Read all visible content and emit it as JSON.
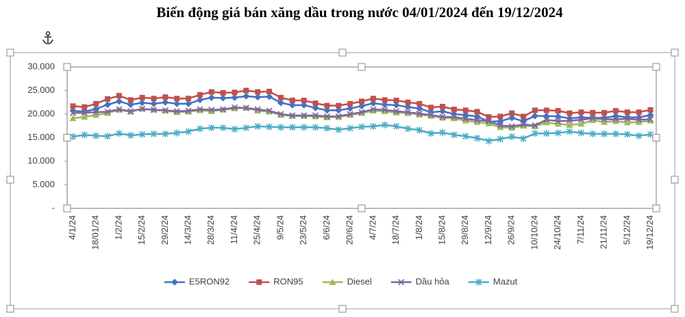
{
  "chart_data": {
    "type": "line",
    "title": "Biến động giá bán xăng dầu trong nước 04/01/2024 đến 19/12/2024",
    "categories": [
      "4/1/24",
      null,
      "18/01/24",
      null,
      "1/2/24",
      null,
      "15/2/24",
      null,
      "29/2/24",
      null,
      "14/3/24",
      null,
      "28/3/24",
      null,
      "11/4/24",
      null,
      "25/4/24",
      null,
      "9/5/24",
      null,
      "23/5/24",
      null,
      "6/6/24",
      null,
      "20/6/24",
      null,
      "4/7/24",
      null,
      "18/7/24",
      null,
      "1/8/24",
      null,
      "15/8/24",
      null,
      "29/8/24",
      null,
      "12/9/24",
      null,
      "26/9/24",
      null,
      "10/10/24",
      null,
      "24/10/24",
      null,
      "7/11/24",
      null,
      "21/11/24",
      null,
      "5/12/24",
      null,
      "19/12/24"
    ],
    "series": [
      {
        "name": "E5RON92",
        "color": "#4472c4",
        "marker": "diamond",
        "values": [
          20700,
          20500,
          21100,
          22000,
          22700,
          22000,
          22400,
          22200,
          22500,
          22200,
          22200,
          23000,
          23500,
          23400,
          23500,
          23800,
          23600,
          23700,
          22400,
          21900,
          21900,
          21300,
          20800,
          20800,
          21200,
          21700,
          22300,
          22000,
          21900,
          21500,
          21200,
          20400,
          20600,
          20000,
          19800,
          19500,
          18400,
          18500,
          19200,
          18500,
          19600,
          19600,
          19500,
          19100,
          19300,
          19200,
          19200,
          19600,
          19300,
          19300,
          19800
        ]
      },
      {
        "name": "RON95",
        "color": "#c0504d",
        "marker": "square",
        "values": [
          21700,
          21500,
          22200,
          23200,
          23900,
          23000,
          23500,
          23300,
          23600,
          23300,
          23300,
          24100,
          24700,
          24500,
          24600,
          25000,
          24700,
          24800,
          23500,
          22900,
          22900,
          22300,
          21800,
          21800,
          22200,
          22700,
          23300,
          23000,
          22900,
          22500,
          22200,
          21400,
          21600,
          21000,
          20800,
          20500,
          19400,
          19500,
          20200,
          19500,
          20800,
          20800,
          20700,
          20200,
          20400,
          20300,
          20300,
          20700,
          20400,
          20400,
          20900
        ]
      },
      {
        "name": "Diesel",
        "color": "#9bbb59",
        "marker": "triangle",
        "values": [
          19100,
          19400,
          19800,
          20200,
          20900,
          20500,
          21100,
          20900,
          20700,
          20400,
          20500,
          20800,
          20600,
          20900,
          21200,
          21300,
          20700,
          20500,
          19800,
          19600,
          19600,
          19500,
          19300,
          19400,
          19800,
          20200,
          20700,
          20600,
          20300,
          20200,
          19900,
          19600,
          19200,
          19100,
          18600,
          18300,
          18000,
          17200,
          17100,
          17500,
          17400,
          18200,
          17900,
          17700,
          17900,
          18700,
          18300,
          18500,
          18200,
          18300,
          18600
        ]
      },
      {
        "name": "Dầu hỏa",
        "color": "#8064a2",
        "marker": "x",
        "values": [
          20200,
          20300,
          20400,
          20500,
          21000,
          20600,
          21100,
          20900,
          20800,
          20600,
          20700,
          21000,
          20900,
          21000,
          21400,
          21300,
          21000,
          20700,
          20000,
          19700,
          19700,
          19700,
          19500,
          19500,
          20000,
          20400,
          21000,
          20900,
          20600,
          20400,
          20100,
          19800,
          19400,
          19400,
          19000,
          18700,
          18500,
          17600,
          17400,
          17800,
          17600,
          18800,
          18500,
          18600,
          18800,
          19100,
          18900,
          18900,
          19000,
          18800,
          18900
        ]
      },
      {
        "name": "Mazut",
        "color": "#4bacc6",
        "marker": "star",
        "values": [
          15200,
          15600,
          15400,
          15300,
          15900,
          15500,
          15700,
          15800,
          15800,
          16000,
          16300,
          16900,
          17100,
          17100,
          16800,
          17100,
          17400,
          17300,
          17200,
          17200,
          17200,
          17200,
          17000,
          16700,
          17000,
          17300,
          17400,
          17700,
          17400,
          16900,
          16600,
          15900,
          16100,
          15600,
          15300,
          14900,
          14300,
          14700,
          15200,
          14800,
          15900,
          15900,
          16000,
          16300,
          16000,
          15800,
          15800,
          15800,
          15700,
          15400,
          15700
        ]
      }
    ],
    "ylim": [
      0,
      30000
    ],
    "yticks": [
      {
        "value": 0,
        "label": "-"
      },
      {
        "value": 5000,
        "label": "5.000"
      },
      {
        "value": 10000,
        "label": "10.000"
      },
      {
        "value": 15000,
        "label": "15.000"
      },
      {
        "value": 20000,
        "label": "20.000"
      },
      {
        "value": 25000,
        "label": "25.000"
      },
      {
        "value": 30000,
        "label": "30.000"
      }
    ],
    "legend": "bottom"
  }
}
